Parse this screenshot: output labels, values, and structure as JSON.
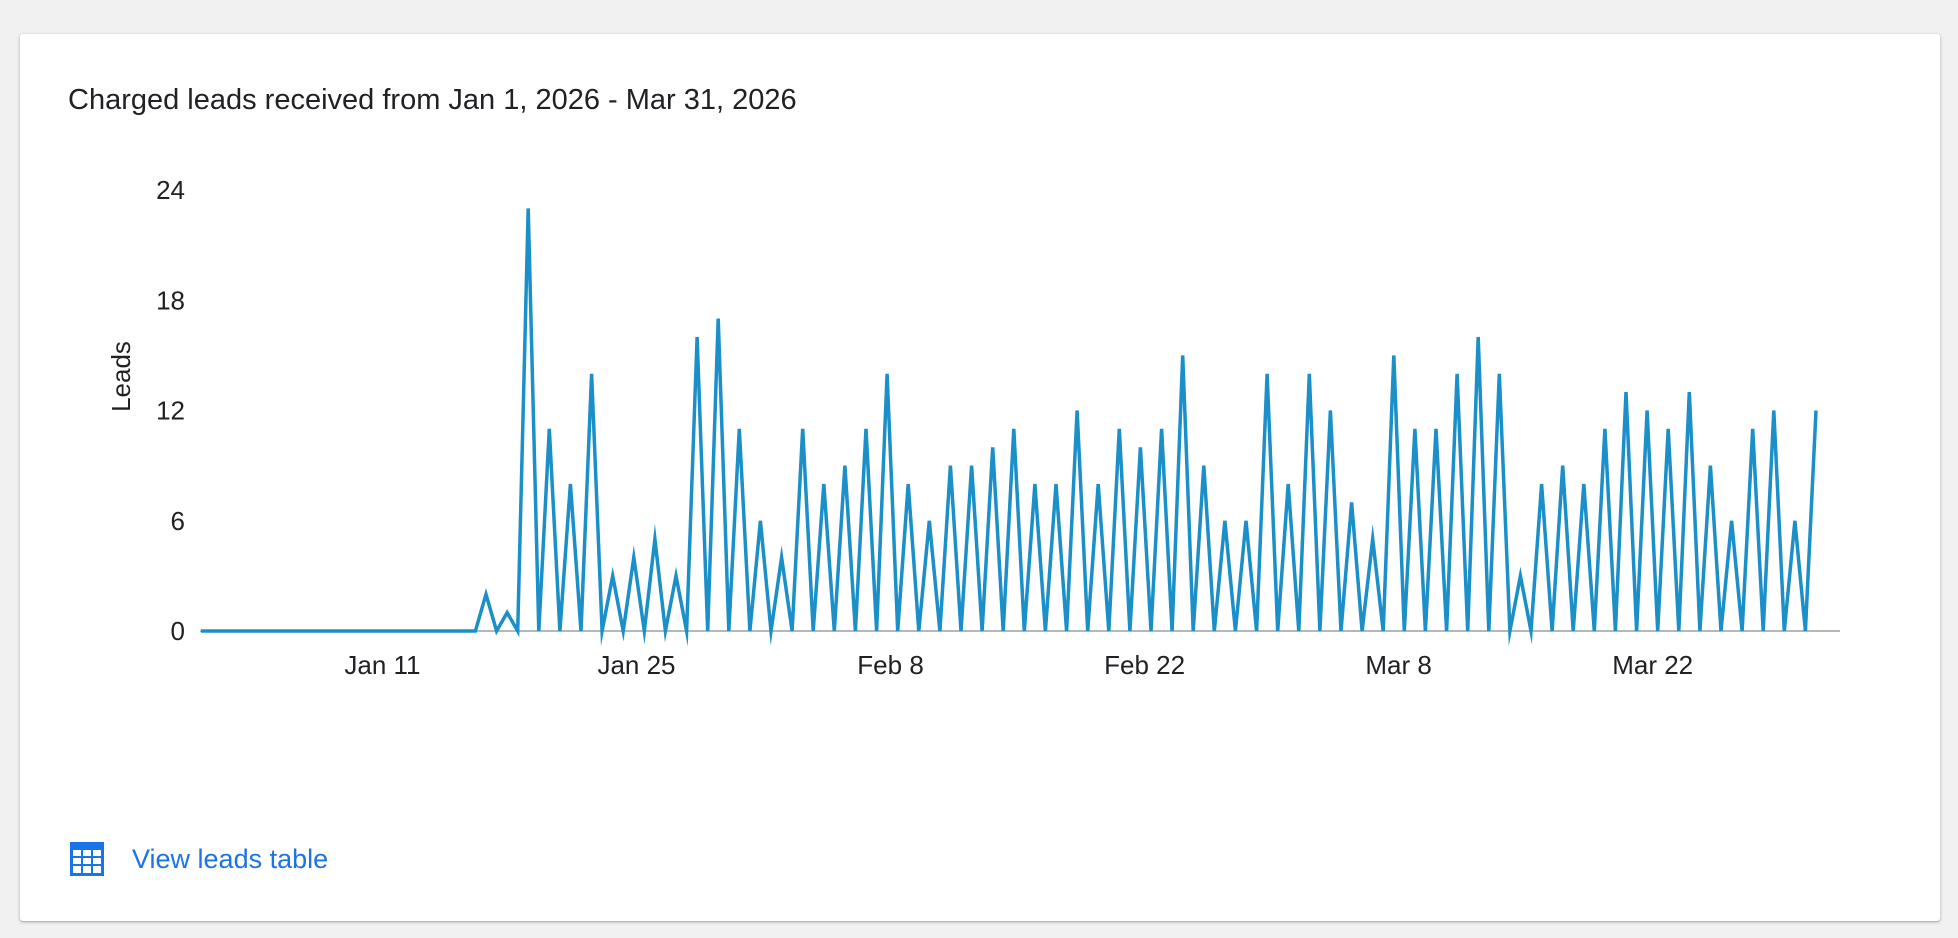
{
  "card": {
    "title": "Charged leads received from Jan 1, 2026 - Mar 31, 2026"
  },
  "link": {
    "label": "View leads table",
    "icon": "table-icon"
  },
  "colors": {
    "series": "#1a8fc8",
    "link": "#1a73e8",
    "axis": "#9aa0a6"
  },
  "chart_data": {
    "type": "line",
    "title": "Charged leads received from Jan 1, 2026 - Mar 31, 2026",
    "xlabel": "",
    "ylabel": "Leads",
    "x_start": "Jan 1",
    "x_end": "Mar 31",
    "ylim": [
      0,
      24
    ],
    "yticks": [
      "0",
      "6",
      "12",
      "18",
      "24"
    ],
    "xticks": [
      {
        "label": "Jan 11",
        "day": 11
      },
      {
        "label": "Jan 25",
        "day": 25
      },
      {
        "label": "Feb 8",
        "day": 39
      },
      {
        "label": "Feb 22",
        "day": 53
      },
      {
        "label": "Mar 8",
        "day": 67
      },
      {
        "label": "Mar 22",
        "day": 81
      }
    ],
    "grid": false,
    "legend": "none",
    "series": [
      {
        "values": [
          0,
          0,
          0,
          0,
          0,
          0,
          0,
          0,
          0,
          0,
          0,
          0,
          0,
          0,
          0,
          0,
          0,
          0,
          0,
          0,
          0,
          0,
          0,
          0,
          0,
          0,
          0,
          2,
          0,
          1,
          0,
          23,
          0,
          11,
          0,
          8,
          0,
          14,
          0,
          3,
          0,
          4,
          0,
          5,
          0,
          3,
          0,
          16,
          0,
          17,
          0,
          11,
          0,
          6,
          0,
          4,
          0,
          11,
          0,
          8,
          0,
          9,
          0,
          11,
          0,
          14,
          0,
          8,
          0,
          6,
          0,
          9,
          0,
          9,
          0,
          10,
          0,
          11,
          0,
          8,
          0,
          8,
          0,
          12,
          0,
          8,
          0,
          11,
          0,
          10,
          0,
          11,
          0,
          15,
          0,
          9,
          0,
          6,
          0,
          6,
          0,
          14,
          0,
          8,
          0,
          14,
          0,
          12,
          0,
          7,
          0,
          5,
          0,
          15,
          0,
          11,
          0,
          11,
          0,
          14,
          0,
          16,
          0,
          14,
          0,
          3,
          0,
          8,
          0,
          9,
          0,
          8,
          0,
          11,
          0,
          13,
          0,
          12,
          0,
          11,
          0,
          13,
          0,
          9,
          0,
          6,
          0,
          11,
          0,
          12,
          0,
          6,
          0,
          12
        ]
      }
    ]
  }
}
